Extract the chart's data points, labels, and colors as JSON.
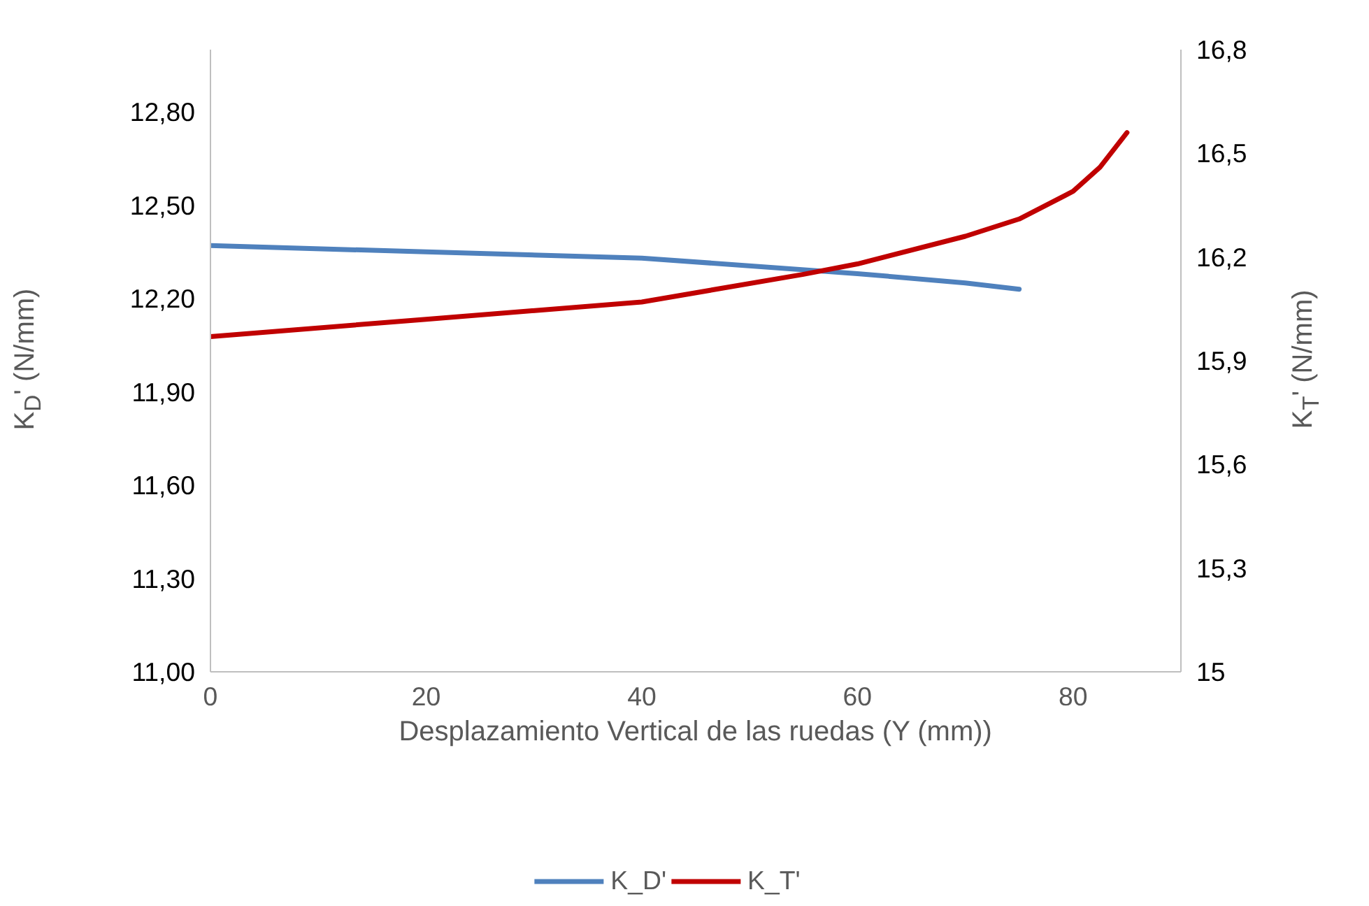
{
  "chart_data": {
    "type": "line",
    "xlabel": "Desplazamiento Vertical de las ruedas (Y (mm))",
    "ylabel": "K$_{D}$' (N/mm)",
    "y2label": "K$_{T}$' (N/mm)",
    "xlim": [
      0,
      90
    ],
    "xticks": [
      0,
      20,
      40,
      60,
      80
    ],
    "ylim": [
      11,
      13
    ],
    "yticks": [
      {
        "value": 11,
        "label": "11,00"
      },
      {
        "value": 11.3,
        "label": "11,30"
      },
      {
        "value": 11.6,
        "label": "11,60"
      },
      {
        "value": 11.9,
        "label": "11,90"
      },
      {
        "value": 12.2,
        "label": "12,20"
      },
      {
        "value": 12.5,
        "label": "12,50"
      },
      {
        "value": 12.8,
        "label": "12,80"
      }
    ],
    "y2lim": [
      15,
      16.8
    ],
    "y2ticks": [
      15,
      {
        "value": 15.3,
        "label": "15,3"
      },
      {
        "value": 15.6,
        "label": "15,6"
      },
      {
        "value": 15.9,
        "label": "15,9"
      },
      {
        "value": 16.2,
        "label": "16,2"
      },
      {
        "value": 16.5,
        "label": "16,5"
      },
      {
        "value": 16.8,
        "label": "16,8"
      }
    ],
    "grid": false,
    "legend": "bottom",
    "marker": "none",
    "line_style": "solid",
    "series": [
      {
        "name": "K_D'",
        "color": "#4f81bd",
        "x": [
          0,
          20,
          40,
          60,
          70,
          75
        ],
        "values": [
          12.37,
          12.35,
          12.33,
          12.28,
          12.25,
          12.23
        ]
      },
      {
        "name": "K_T'",
        "color": "#c00000",
        "axis": "y2",
        "x": [
          0,
          20,
          40,
          55,
          60,
          70,
          75,
          80,
          82.5,
          85
        ],
        "values": [
          15.97,
          16.02,
          16.07,
          16.15,
          16.18,
          16.26,
          16.31,
          16.39,
          16.46,
          16.56
        ]
      }
    ]
  }
}
